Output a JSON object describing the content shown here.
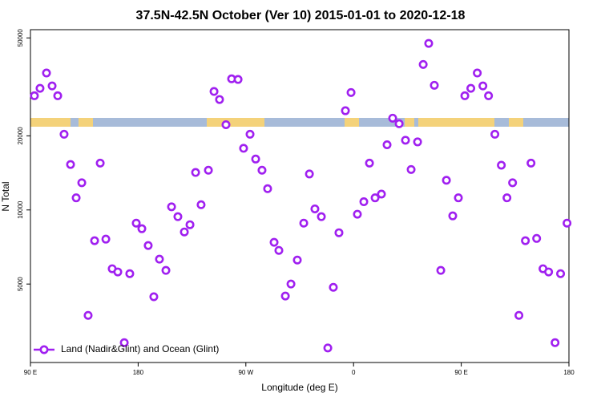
{
  "chart_data": {
    "type": "scatter",
    "title": "37.5N-42.5N October (Ver 10)   2015-01-01 to 2020-12-18",
    "x_label": "Longitude (deg E)",
    "y_label": "N Total",
    "log_y": true,
    "legend": "bottom-left",
    "xlim": [
      90,
      540
    ],
    "xticks": [
      {
        "value": 90,
        "label": "90 E"
      },
      180,
      {
        "value": 270,
        "label": "90 W"
      },
      {
        "value": 360,
        "label": "0"
      },
      {
        "value": 450,
        "label": "90 E"
      },
      {
        "value": 540,
        "label": "180"
      }
    ],
    "ylim": [
      2400,
      54000
    ],
    "yticks": [
      5000,
      10000,
      20000,
      50000
    ],
    "series": [
      {
        "name": "Land (Nadir&Glint) and Ocean (Glint)",
        "color": "#a020f0",
        "x": [
          93.3,
          98,
          103.4,
          108.1,
          112.8,
          118.1,
          123.5,
          128.2,
          132.9,
          138.2,
          143.6,
          148.3,
          153,
          158.3,
          163,
          168.4,
          173,
          178.4,
          183.1,
          188.4,
          193.1,
          197.8,
          203.2,
          207.9,
          213.2,
          218.6,
          223.3,
          228,
          232.6,
          238.7,
          243.4,
          248,
          253.4,
          258.1,
          263.5,
          268.1,
          273.5,
          278.2,
          283.5,
          288.2,
          293.6,
          297.6,
          303,
          307.7,
          313,
          318.4,
          323.1,
          327.7,
          333.1,
          338.5,
          343.1,
          347.8,
          353.2,
          357.9,
          363.2,
          368.6,
          373.3,
          378,
          383.3,
          388,
          392.7,
          398.1,
          403.4,
          408.1,
          413.5,
          418.2,
          422.8,
          427.5,
          432.9,
          437.6,
          442.9,
          447.6,
          453,
          458,
          463.4,
          468.1,
          472.8,
          478.1,
          483.5,
          488.2,
          492.9,
          498.2,
          503.6,
          508.3,
          513,
          518.3,
          523,
          528.4,
          533,
          538.4
        ],
        "values": [
          29100,
          31200,
          36000,
          31900,
          29100,
          20300,
          15300,
          11200,
          12900,
          3730,
          7500,
          15500,
          7610,
          5770,
          5600,
          2890,
          5510,
          8840,
          8390,
          7170,
          4440,
          6310,
          5680,
          10300,
          9390,
          8140,
          8710,
          14200,
          10500,
          14500,
          30300,
          28100,
          22200,
          34100,
          33900,
          17800,
          20300,
          16100,
          14500,
          12200,
          7390,
          6850,
          4470,
          5000,
          6260,
          8840,
          14000,
          10100,
          9390,
          2750,
          4850,
          8080,
          25300,
          30000,
          9610,
          10800,
          15500,
          11200,
          11600,
          18400,
          23600,
          22400,
          19200,
          14600,
          18900,
          39000,
          47500,
          32100,
          5680,
          13200,
          9460,
          11200,
          29100,
          31200,
          36000,
          31900,
          29100,
          20300,
          15200,
          11200,
          12900,
          3730,
          7500,
          15500,
          7660,
          5770,
          5600,
          2890,
          5510,
          8840
        ]
      }
    ]
  }
}
